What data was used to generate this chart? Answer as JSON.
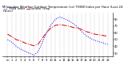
{
  "title": "Milwaukee Weather Outdoor Temperature (vs) THSW Index per Hour (Last 24 Hours)",
  "temp_color": "#dd0000",
  "thsw_color": "#0000ee",
  "background_color": "#ffffff",
  "plot_bg_color": "#ffffff",
  "grid_color": "#888888",
  "hours": [
    0,
    1,
    2,
    3,
    4,
    5,
    6,
    7,
    8,
    9,
    10,
    11,
    12,
    13,
    14,
    15,
    16,
    17,
    18,
    19,
    20,
    21,
    22,
    23
  ],
  "temp_values": [
    58,
    54,
    50,
    48,
    45,
    43,
    41,
    43,
    52,
    61,
    67,
    71,
    72,
    71,
    70,
    68,
    67,
    65,
    62,
    60,
    58,
    57,
    56,
    55
  ],
  "thsw_values": [
    50,
    46,
    40,
    36,
    33,
    30,
    27,
    32,
    46,
    60,
    72,
    80,
    83,
    81,
    78,
    74,
    69,
    62,
    56,
    52,
    49,
    47,
    45,
    43
  ],
  "ylim_min": 25,
  "ylim_max": 90,
  "ytick_values": [
    30,
    40,
    50,
    60,
    70,
    80
  ],
  "title_fontsize": 2.8,
  "tick_fontsize": 2.6,
  "legend_fontsize": 2.5,
  "line_width": 0.7,
  "marker_size": 0.0
}
